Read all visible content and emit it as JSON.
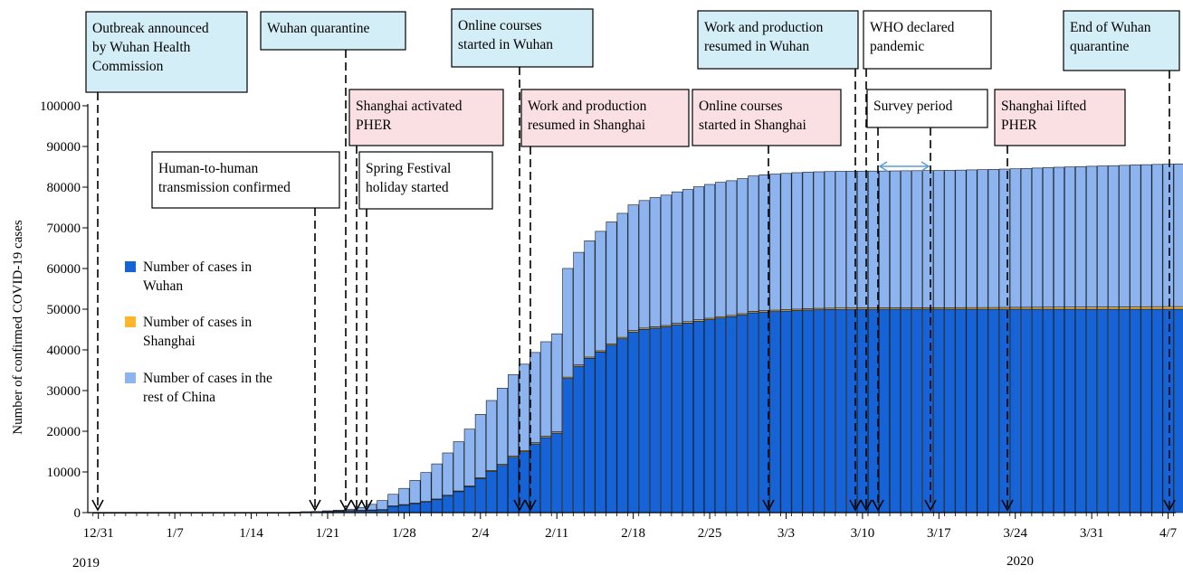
{
  "colors": {
    "wuhan": "#1563d6",
    "shanghai": "#ffb52e",
    "rest": "#8db4ee",
    "bar_outline": "#101820",
    "box_blue": "#d4eef8",
    "box_pink": "#fadfe3",
    "box_white": "#ffffff",
    "survey_arrow": "#5b9bd5"
  },
  "chart_data": {
    "type": "bar",
    "stacked": true,
    "ylabel": "Number of confirmed COVID-19 cases",
    "xlabel": "",
    "ylim": [
      0,
      100000
    ],
    "yticks": [
      0,
      10000,
      20000,
      30000,
      40000,
      50000,
      60000,
      70000,
      80000,
      90000,
      100000
    ],
    "x_tick_labels": [
      "12/31",
      "1/7",
      "1/14",
      "1/21",
      "1/28",
      "2/4",
      "2/11",
      "2/18",
      "2/25",
      "3/3",
      "3/10",
      "3/17",
      "3/24",
      "3/31",
      "4/7"
    ],
    "year_labels": [
      "2019",
      "2020"
    ],
    "grid": false,
    "legend_position": "left",
    "series": [
      {
        "name": "Number of cases in Wuhan",
        "color_key": "wuhan",
        "values": [
          27,
          27,
          27,
          27,
          27,
          41,
          41,
          41,
          41,
          41,
          41,
          41,
          41,
          41,
          41,
          41,
          41,
          41,
          62,
          198,
          258,
          363,
          425,
          495,
          572,
          618,
          698,
          1590,
          1905,
          2261,
          2639,
          3215,
          4109,
          5142,
          6384,
          8351,
          10117,
          11618,
          13603,
          14982,
          16902,
          18454,
          19558,
          32994,
          35991,
          37914,
          39462,
          41152,
          42752,
          44412,
          45027,
          45346,
          45660,
          46201,
          46607,
          47071,
          47441,
          47824,
          48137,
          48557,
          49122,
          49315,
          49426,
          49540,
          49671,
          49797,
          49871,
          49912,
          49948,
          49965,
          49978,
          49986,
          49991,
          49995,
          49999,
          50003,
          50004,
          50005,
          50005,
          50005,
          50005,
          50005,
          50006,
          50006,
          50006,
          50006,
          50006,
          50006,
          50007,
          50007,
          50007,
          50007,
          50008,
          50008,
          50008,
          50008,
          50008,
          50008,
          50008,
          50008
        ]
      },
      {
        "name": "Number of cases in Shanghai",
        "color_key": "shanghai",
        "values": [
          0,
          0,
          0,
          0,
          0,
          0,
          0,
          0,
          0,
          0,
          0,
          0,
          0,
          0,
          0,
          0,
          0,
          0,
          0,
          0,
          2,
          9,
          16,
          20,
          33,
          40,
          53,
          66,
          80,
          101,
          112,
          135,
          169,
          182,
          203,
          219,
          243,
          257,
          277,
          286,
          293,
          299,
          303,
          311,
          315,
          318,
          326,
          328,
          332,
          333,
          333,
          334,
          334,
          335,
          335,
          335,
          336,
          337,
          337,
          337,
          338,
          338,
          339,
          339,
          339,
          339,
          339,
          342,
          342,
          344,
          344,
          345,
          345,
          350,
          352,
          353,
          358,
          361,
          371,
          380,
          394,
          404,
          414,
          433,
          452,
          468,
          484,
          492,
          499,
          503,
          509,
          515,
          526,
          529,
          545,
          599,
          600,
          610,
          620,
          629
        ]
      },
      {
        "name": "Number of cases in the rest of China",
        "color_key": "rest",
        "values": [
          0,
          0,
          0,
          0,
          0,
          0,
          0,
          0,
          0,
          0,
          0,
          0,
          0,
          0,
          0,
          0,
          0,
          0,
          14,
          14,
          18,
          75,
          169,
          330,
          680,
          1378,
          2218,
          2843,
          3976,
          5555,
          7105,
          8630,
          10393,
          12112,
          13931,
          15581,
          17201,
          18713,
          20015,
          21225,
          22168,
          23251,
          24094,
          26711,
          27674,
          28575,
          29349,
          29972,
          30482,
          30893,
          31346,
          31768,
          32050,
          32313,
          32497,
          32701,
          32889,
          33031,
          33105,
          33206,
          33294,
          33385,
          33453,
          33508,
          33549,
          33560,
          33567,
          33580,
          33597,
          33607,
          33615,
          33622,
          33632,
          33653,
          33674,
          33688,
          33706,
          33728,
          33760,
          33801,
          33846,
          33898,
          33952,
          34001,
          34061,
          34129,
          34208,
          34300,
          34392,
          34467,
          34540,
          34613,
          34683,
          34748,
          34810,
          34867,
          34920,
          34972,
          35025,
          35078
        ]
      }
    ],
    "annotations": [
      {
        "label": "Outbreak announced by Wuhan Health Commission",
        "date": "12/31",
        "style": "blue"
      },
      {
        "label": "Human-to-human transmission confirmed",
        "date": "1/20",
        "style": "white"
      },
      {
        "label": "Wuhan quarantine",
        "date": "1/23",
        "style": "blue"
      },
      {
        "label": "Shanghai activated PHER",
        "date": "1/24",
        "style": "pink"
      },
      {
        "label": "Spring Festival holiday started",
        "date": "1/25",
        "style": "white"
      },
      {
        "label": "Online courses started in Wuhan",
        "date": "2/9",
        "style": "blue"
      },
      {
        "label": "Work and production resumed in Shanghai",
        "date": "2/10",
        "style": "pink"
      },
      {
        "label": "Online courses started in Shanghai",
        "date": "3/2",
        "style": "pink"
      },
      {
        "label": "Work and production resumed in Wuhan",
        "date": "3/10",
        "style": "blue"
      },
      {
        "label": "WHO declared pandemic",
        "date": "3/11",
        "style": "white"
      },
      {
        "label": "Survey period",
        "date": "3/12 – 3/17",
        "style": "white"
      },
      {
        "label": "Shanghai lifted PHER",
        "date": "3/24",
        "style": "pink"
      },
      {
        "label": "End of Wuhan quarantine",
        "date": "4/8",
        "style": "blue"
      }
    ]
  }
}
